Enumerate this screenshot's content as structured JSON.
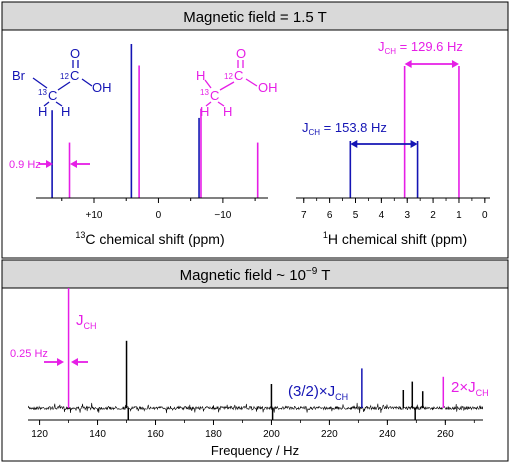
{
  "colors": {
    "blue": "#1414b4",
    "magenta": "#e61ee6",
    "black": "#000000",
    "header_bg": "#d9d9d9"
  },
  "top_header": {
    "label": "Magnetic field = 1.5 T"
  },
  "bottom_header": {
    "label": "Magnetic field ~ 10",
    "superscript": "−9",
    "unit": " T"
  },
  "molecules": {
    "bromo": {
      "br": "Br",
      "c13": "13",
      "c": "C",
      "c12": "12",
      "o": "O",
      "oh": "OH",
      "h": "H"
    },
    "acetic": {
      "h": "H",
      "c13": "13",
      "c": "C",
      "c12": "12",
      "o": "O",
      "oh": "OH"
    }
  },
  "chart_data": [
    {
      "type": "line",
      "title": "",
      "xlabel": {
        "sup": "13",
        "text": "C chemical shift (ppm)"
      },
      "xlim": [
        19,
        -17
      ],
      "ticks": [
        {
          "v": 10,
          "label": "+10"
        },
        {
          "v": 0,
          "label": "0"
        },
        {
          "v": -10,
          "label": "−10"
        }
      ],
      "minor_ticks": [
        15,
        5,
        -5,
        -15
      ],
      "annotation": {
        "label": "0.9 Hz"
      },
      "series": [
        {
          "color": "blue",
          "peaks": [
            {
              "x": 16.5,
              "y": 0.57
            },
            {
              "x": 4.2,
              "y": 1.0
            },
            {
              "x": -6.3,
              "y": 0.52
            }
          ]
        },
        {
          "color": "magenta",
          "peaks": [
            {
              "x": 13.8,
              "y": 0.36
            },
            {
              "x": 3.0,
              "y": 0.86
            },
            {
              "x": -6.6,
              "y": 0.58
            },
            {
              "x": -15.4,
              "y": 0.36
            }
          ]
        }
      ]
    },
    {
      "type": "line",
      "title": "",
      "xlabel": {
        "sup": "1",
        "text": "H chemical shift (ppm)"
      },
      "xlim": [
        7.3,
        -0.2
      ],
      "ticks": [
        {
          "v": 7,
          "label": "7"
        },
        {
          "v": 6,
          "label": "6"
        },
        {
          "v": 5,
          "label": "5"
        },
        {
          "v": 4,
          "label": "4"
        },
        {
          "v": 3,
          "label": "3"
        },
        {
          "v": 2,
          "label": "2"
        },
        {
          "v": 1,
          "label": "1"
        },
        {
          "v": 0,
          "label": "0"
        }
      ],
      "annotations": [
        {
          "color": "blue",
          "J": "J",
          "sub": "CH",
          "value": " = 153.8 Hz"
        },
        {
          "color": "magenta",
          "J": "J",
          "sub": "CH",
          "value": " = 129.6 Hz"
        }
      ],
      "series": [
        {
          "color": "blue",
          "peaks": [
            {
              "x": 5.2,
              "y": 0.38
            },
            {
              "x": 2.6,
              "y": 0.38
            }
          ]
        },
        {
          "color": "magenta",
          "peaks": [
            {
              "x": 3.1,
              "y": 0.88
            },
            {
              "x": 1.0,
              "y": 0.88
            }
          ]
        }
      ]
    },
    {
      "type": "line",
      "title": "",
      "xlabel": "Frequency / Hz",
      "xlim": [
        116,
        273
      ],
      "ticks": [
        {
          "v": 120,
          "label": "120"
        },
        {
          "v": 140,
          "label": "140"
        },
        {
          "v": 160,
          "label": "160"
        },
        {
          "v": 180,
          "label": "180"
        },
        {
          "v": 200,
          "label": "200"
        },
        {
          "v": 220,
          "label": "220"
        },
        {
          "v": 240,
          "label": "240"
        },
        {
          "v": 260,
          "label": "260"
        }
      ],
      "annotations": [
        {
          "color": "magenta",
          "J": "J",
          "sub": "CH"
        },
        {
          "color": "magenta",
          "label": "0.25 Hz"
        },
        {
          "color": "blue",
          "prefix": "(3/2)×J",
          "sub": "CH"
        },
        {
          "color": "magenta",
          "prefix": "2×J",
          "sub": "CH"
        }
      ],
      "series": [
        {
          "color": "magenta",
          "peaks": [
            {
              "x": 130.0,
              "y": 1.0
            },
            {
              "x": 259.3,
              "y": 0.26
            }
          ]
        },
        {
          "color": "blue",
          "peaks": [
            {
              "x": 231.2,
              "y": 0.33
            }
          ]
        },
        {
          "color": "black",
          "peaks": [
            {
              "x": 150.0,
              "y": 0.56
            },
            {
              "x": 150.6,
              "y": -0.38
            },
            {
              "x": 200.0,
              "y": 0.2
            },
            {
              "x": 200.4,
              "y": -0.14
            },
            {
              "x": 245.5,
              "y": 0.15
            },
            {
              "x": 248.6,
              "y": 0.22
            },
            {
              "x": 249.6,
              "y": -0.3
            },
            {
              "x": 252.2,
              "y": 0.14
            }
          ]
        }
      ]
    }
  ]
}
